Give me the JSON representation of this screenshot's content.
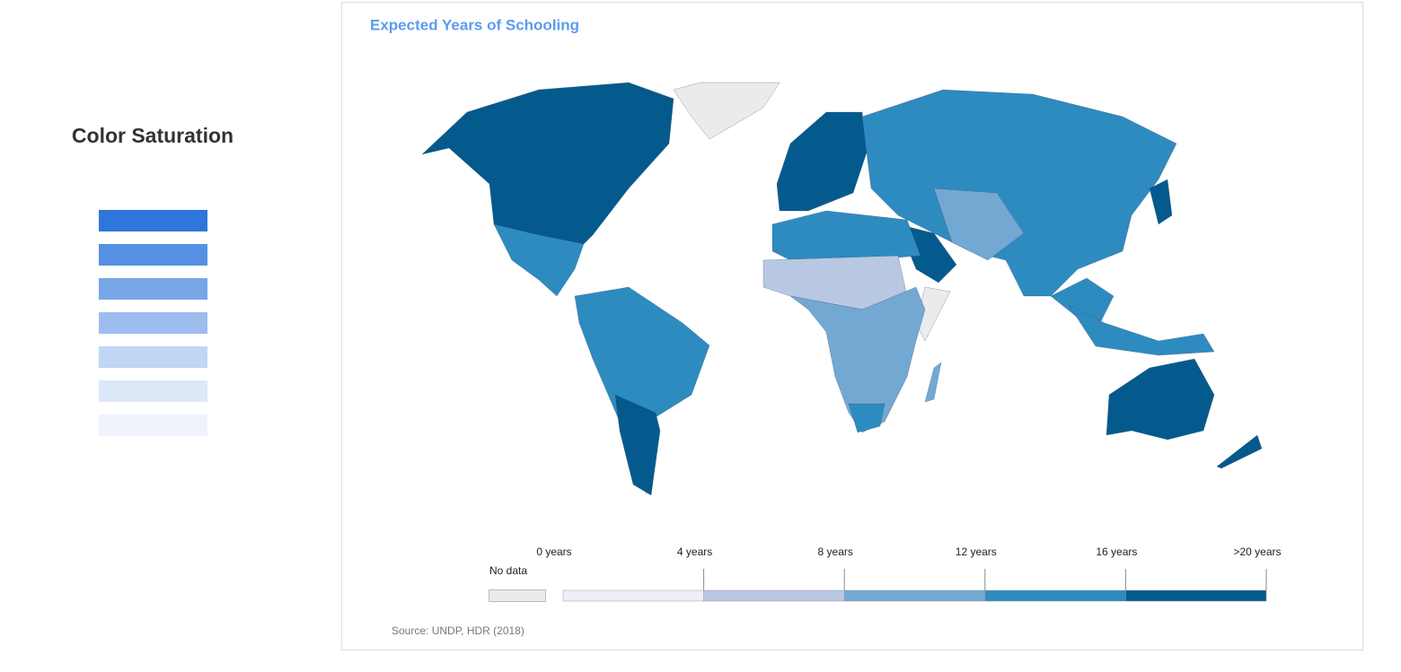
{
  "sidebar": {
    "title": "Color Saturation",
    "swatches": [
      "#2f76dc",
      "#5690e2",
      "#77a6e7",
      "#9dbdee",
      "#c1d6f4",
      "#dde8f8",
      "#eff4fc"
    ]
  },
  "map": {
    "title": "Expected Years of Schooling",
    "legend": {
      "no_data": {
        "label": "No data",
        "color": "#ebebeb"
      },
      "ticks": [
        "0 years",
        "4 years",
        "8 years",
        "12 years",
        "16 years",
        ">20 years"
      ],
      "bins": [
        "#eeeef6",
        "#b9c8e2",
        "#73a8d2",
        "#2e8bc0",
        "#045a8d"
      ]
    },
    "source": "Source: UNDP, HDR (2018)"
  }
}
